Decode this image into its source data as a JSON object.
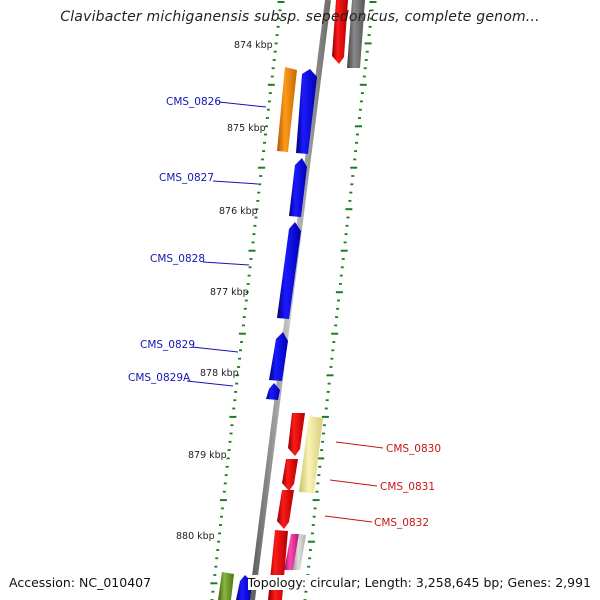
{
  "title": "Clavibacter michiganensis subsp. sepedonicus, complete genom...",
  "footer": {
    "accession": "Accession: NC_010407",
    "summary": "Topology: circular; Length: 3,258,645 bp; Genes: 2,991"
  },
  "colors": {
    "backbone": "#8a8a8a",
    "tick": "#1e7d1e",
    "forward_gene": "#0a0aee",
    "reverse_gene": "#ee0a0a",
    "label_forward": "#1414b4",
    "label_reverse": "#c81414",
    "orange_gene": "#f08c0a",
    "pale_yellow": "#f0e89a",
    "grey_gene": "#707070",
    "green_gene": "#6a9a2a",
    "magenta_gene": "#e0309a"
  },
  "kbp_labels": [
    "874 kbp",
    "875 kbp",
    "876 kbp",
    "877 kbp",
    "878 kbp",
    "879 kbp",
    "880 kbp"
  ],
  "genes": [
    {
      "label": "CMS_0826",
      "strand": "forward"
    },
    {
      "label": "CMS_0827",
      "strand": "forward"
    },
    {
      "label": "CMS_0828",
      "strand": "forward"
    },
    {
      "label": "CMS_0829",
      "strand": "forward"
    },
    {
      "label": "CMS_0829A",
      "strand": "forward"
    },
    {
      "label": "CMS_0830",
      "strand": "reverse"
    },
    {
      "label": "CMS_0831",
      "strand": "reverse"
    },
    {
      "label": "CMS_0832",
      "strand": "reverse"
    }
  ]
}
